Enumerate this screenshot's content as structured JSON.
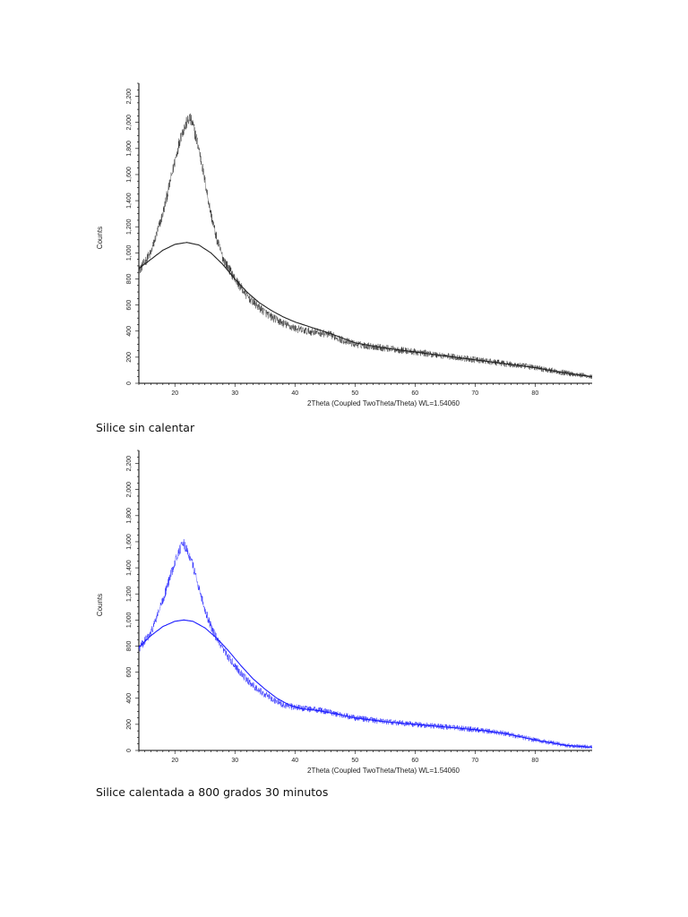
{
  "chart_data": [
    {
      "type": "line",
      "title": "",
      "xlabel": "2Theta (Coupled TwoTheta/Theta) WL=1.54060",
      "ylabel": "Counts",
      "xlim": [
        14,
        89.5
      ],
      "ylim": [
        0,
        2300
      ],
      "x_ticks": [
        20,
        30,
        40,
        50,
        60,
        70,
        80
      ],
      "y_ticks": [
        0,
        200,
        400,
        600,
        800,
        1000,
        1200,
        1400,
        1600,
        1800,
        2000,
        2200
      ],
      "y_tick_labels": [
        "0",
        "200",
        "400",
        "600",
        "800",
        "1,000",
        "1,200",
        "1,400",
        "1,600",
        "1,800",
        "2,000",
        "2,200"
      ],
      "grid": false,
      "color": "#222222",
      "series": [
        {
          "role": "raw",
          "noise": 40,
          "x": [
            14,
            16,
            18,
            20,
            21,
            22,
            22.5,
            23,
            24,
            25,
            26,
            27,
            28,
            30,
            32,
            34,
            36,
            38,
            40,
            42,
            44,
            46,
            48,
            50,
            55,
            60,
            65,
            70,
            75,
            80,
            85,
            89.5
          ],
          "y": [
            860,
            1000,
            1300,
            1700,
            1900,
            2000,
            2030,
            1980,
            1800,
            1550,
            1300,
            1100,
            960,
            800,
            670,
            580,
            510,
            460,
            420,
            400,
            390,
            370,
            330,
            300,
            270,
            240,
            210,
            180,
            150,
            120,
            80,
            50
          ]
        },
        {
          "role": "background",
          "noise": 0,
          "x": [
            14,
            16,
            18,
            20,
            22,
            24,
            26,
            28,
            30,
            32,
            34,
            36,
            38,
            40,
            42,
            44,
            46,
            48,
            50,
            55,
            60,
            65,
            70,
            75,
            80,
            85,
            89.5
          ],
          "y": [
            880,
            950,
            1020,
            1065,
            1080,
            1060,
            1000,
            910,
            800,
            700,
            620,
            560,
            510,
            470,
            440,
            410,
            380,
            345,
            310,
            270,
            240,
            210,
            180,
            150,
            120,
            80,
            50
          ]
        }
      ]
    },
    {
      "type": "line",
      "title": "",
      "xlabel": "2Theta (Coupled TwoTheta/Theta) WL=1.54060",
      "ylabel": "Counts",
      "xlim": [
        14,
        89.5
      ],
      "ylim": [
        0,
        2300
      ],
      "x_ticks": [
        20,
        30,
        40,
        50,
        60,
        70,
        80
      ],
      "y_ticks": [
        0,
        200,
        400,
        600,
        800,
        1000,
        1200,
        1400,
        1600,
        1800,
        2000,
        2200
      ],
      "y_tick_labels": [
        "0",
        "200",
        "400",
        "600",
        "800",
        "1,000",
        "1,200",
        "1,400",
        "1,600",
        "1,800",
        "2,000",
        "2,200"
      ],
      "grid": false,
      "color": "#1a1aff",
      "series": [
        {
          "role": "raw",
          "noise": 35,
          "x": [
            14,
            16,
            18,
            20,
            21,
            21.5,
            22,
            23,
            24,
            25,
            26,
            27,
            28,
            30,
            32,
            34,
            36,
            38,
            40,
            42,
            44,
            46,
            48,
            50,
            55,
            60,
            65,
            70,
            75,
            80,
            85,
            89.5
          ],
          "y": [
            780,
            900,
            1150,
            1450,
            1560,
            1580,
            1540,
            1420,
            1250,
            1080,
            950,
            850,
            770,
            650,
            540,
            460,
            400,
            350,
            330,
            320,
            310,
            290,
            270,
            250,
            220,
            200,
            180,
            160,
            130,
            80,
            40,
            25
          ]
        },
        {
          "role": "background",
          "noise": 0,
          "x": [
            14,
            16,
            18,
            20,
            21.5,
            23,
            25,
            27,
            29,
            31,
            33,
            35,
            37,
            39,
            41,
            44,
            48,
            50,
            55,
            60,
            65,
            70,
            75,
            80,
            85,
            89.5
          ],
          "y": [
            790,
            880,
            950,
            990,
            1000,
            990,
            940,
            860,
            760,
            650,
            550,
            470,
            400,
            350,
            320,
            305,
            270,
            250,
            220,
            200,
            180,
            160,
            130,
            80,
            40,
            25
          ]
        }
      ]
    }
  ],
  "captions": {
    "caption1": "Silice sin calentar",
    "caption2": "Silice calentada a 800 grados 30 minutos"
  }
}
